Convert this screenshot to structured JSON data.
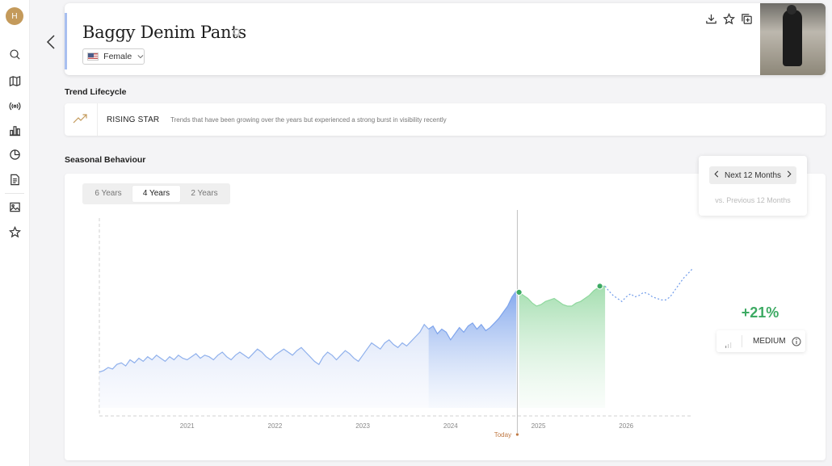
{
  "sidebar": {
    "logo_text": "H",
    "items": [
      {
        "icon": "search-icon"
      },
      {
        "icon": "map-icon"
      },
      {
        "icon": "broadcast-icon"
      },
      {
        "icon": "bar-chart-icon"
      },
      {
        "icon": "pie-chart-icon"
      },
      {
        "icon": "document-icon"
      },
      {
        "icon": "image-icon"
      },
      {
        "icon": "star-icon"
      }
    ]
  },
  "header": {
    "title": "Baggy Denim Pants",
    "gender_select": "Female",
    "accent_color": "#a8bff0"
  },
  "lifecycle": {
    "section_title": "Trend Lifecycle",
    "label": "RISING STAR",
    "description": "Trends that have been growing over the years but experienced a strong burst in visibility recently"
  },
  "seasonal": {
    "section_title": "Seasonal Behaviour",
    "tabs": [
      "6 Years",
      "4 Years",
      "2 Years"
    ],
    "active_tab": "4 Years",
    "today_label": "Today"
  },
  "forecast": {
    "period_label": "Next 12 Months",
    "comparison": "vs. Previous 12 Months",
    "growth": "+21%",
    "confidence": "MEDIUM",
    "growth_color": "#3daa63"
  },
  "chart_data": {
    "type": "area",
    "x_ticks": [
      "2021",
      "2022",
      "2023",
      "2024",
      "2025",
      "2026"
    ],
    "colors": {
      "history": "#8fb0ec",
      "last_year": "#7ea4ec",
      "forecast": "#8fd89e",
      "projection": "#6f9bea",
      "marker": "#3daa63"
    },
    "series": [
      {
        "segment": "history",
        "x": [
          2020.0,
          2020.05,
          2020.1,
          2020.15,
          2020.2,
          2020.25,
          2020.3,
          2020.35,
          2020.4,
          2020.45,
          2020.5,
          2020.55,
          2020.6,
          2020.65,
          2020.7,
          2020.75,
          2020.8,
          2020.85,
          2020.9,
          2020.95,
          2021.0,
          2021.05,
          2021.1,
          2021.15,
          2021.2,
          2021.25,
          2021.3,
          2021.35,
          2021.4,
          2021.45,
          2021.5,
          2021.55,
          2021.6,
          2021.65,
          2021.7,
          2021.75,
          2021.8,
          2021.85,
          2021.9,
          2021.95,
          2022.0,
          2022.05,
          2022.1,
          2022.15,
          2022.2,
          2022.25,
          2022.3,
          2022.35,
          2022.4,
          2022.45,
          2022.5,
          2022.55,
          2022.6,
          2022.65,
          2022.7,
          2022.75,
          2022.8,
          2022.85,
          2022.9,
          2022.95,
          2023.0,
          2023.05,
          2023.1,
          2023.15,
          2023.2,
          2023.25,
          2023.3,
          2023.35,
          2023.4,
          2023.45,
          2023.5,
          2023.55,
          2023.6,
          2023.65,
          2023.7,
          2023.75
        ],
        "y": [
          0.47,
          0.48,
          0.5,
          0.49,
          0.52,
          0.53,
          0.51,
          0.55,
          0.53,
          0.56,
          0.54,
          0.57,
          0.55,
          0.58,
          0.56,
          0.54,
          0.57,
          0.55,
          0.58,
          0.56,
          0.55,
          0.57,
          0.59,
          0.56,
          0.58,
          0.57,
          0.55,
          0.58,
          0.6,
          0.57,
          0.55,
          0.58,
          0.6,
          0.58,
          0.56,
          0.59,
          0.62,
          0.6,
          0.57,
          0.55,
          0.58,
          0.6,
          0.62,
          0.6,
          0.58,
          0.61,
          0.63,
          0.6,
          0.57,
          0.54,
          0.52,
          0.57,
          0.6,
          0.58,
          0.55,
          0.58,
          0.61,
          0.59,
          0.56,
          0.54,
          0.58,
          0.62,
          0.66,
          0.64,
          0.62,
          0.66,
          0.68,
          0.65,
          0.63,
          0.66,
          0.64,
          0.67,
          0.7,
          0.73,
          0.78,
          0.75
        ]
      },
      {
        "segment": "last_year",
        "x": [
          2023.75,
          2023.8,
          2023.85,
          2023.9,
          2023.95,
          2024.0,
          2024.05,
          2024.1,
          2024.15,
          2024.2,
          2024.25,
          2024.3,
          2024.35,
          2024.4,
          2024.45,
          2024.5,
          2024.55,
          2024.6,
          2024.65,
          2024.7,
          2024.75
        ],
        "y": [
          0.75,
          0.77,
          0.72,
          0.75,
          0.73,
          0.68,
          0.72,
          0.76,
          0.73,
          0.77,
          0.79,
          0.75,
          0.78,
          0.74,
          0.76,
          0.79,
          0.82,
          0.86,
          0.9,
          0.96,
          1.0
        ]
      },
      {
        "segment": "forecast",
        "x": [
          2024.78,
          2024.83,
          2024.88,
          2024.93,
          2024.98,
          2025.03,
          2025.08,
          2025.13,
          2025.18,
          2025.23,
          2025.28,
          2025.33,
          2025.38,
          2025.43,
          2025.48,
          2025.53,
          2025.58,
          2025.63,
          2025.68,
          2025.73,
          2025.76
        ],
        "y": [
          0.99,
          0.97,
          0.95,
          0.92,
          0.9,
          0.91,
          0.93,
          0.94,
          0.95,
          0.93,
          0.91,
          0.9,
          0.9,
          0.92,
          0.93,
          0.95,
          0.97,
          1.0,
          1.02,
          1.03,
          1.03
        ]
      },
      {
        "segment": "projection",
        "x": [
          2025.76,
          2025.8,
          2025.85,
          2025.9,
          2025.95,
          2026.0,
          2026.05,
          2026.1,
          2026.15,
          2026.2,
          2026.25,
          2026.3,
          2026.35,
          2026.4,
          2026.45,
          2026.5,
          2026.55,
          2026.6,
          2026.65,
          2026.7,
          2026.75
        ],
        "y": [
          1.03,
          1.0,
          0.97,
          0.95,
          0.93,
          0.96,
          0.98,
          0.96,
          0.97,
          0.99,
          0.98,
          0.96,
          0.95,
          0.94,
          0.94,
          0.96,
          1.0,
          1.04,
          1.08,
          1.11,
          1.14
        ]
      }
    ],
    "markers": [
      {
        "x": 2024.78,
        "y": 0.99
      },
      {
        "x": 2025.7,
        "y": 1.03
      }
    ],
    "today_x": 2024.76
  }
}
